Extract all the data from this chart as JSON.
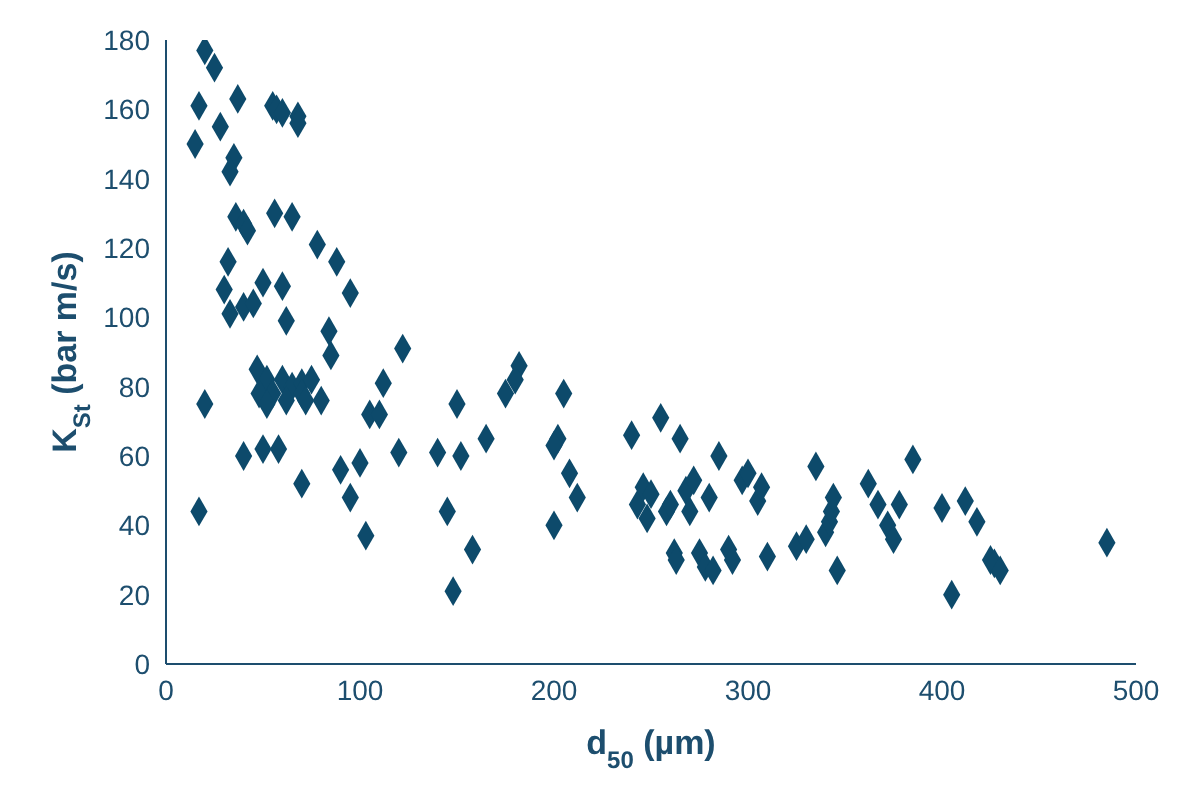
{
  "chart_data": {
    "type": "scatter",
    "xlabel": "d$_{50}$ (µm)",
    "ylabel": "K$_{St}$ (bar m/s)",
    "xlim": [
      0,
      500
    ],
    "xticks": [
      0,
      100,
      200,
      300,
      400,
      500
    ],
    "ylim": [
      0,
      180
    ],
    "yticks": [
      0,
      20,
      40,
      60,
      80,
      100,
      120,
      140,
      160,
      180
    ],
    "grid": false,
    "marker": "diamond",
    "series": [
      {
        "color": "#0d4a6b",
        "x": [
          20,
          25,
          17,
          28,
          15,
          37,
          35,
          33,
          55,
          57,
          60,
          68,
          68,
          36,
          40,
          42,
          56,
          65,
          32,
          30,
          50,
          33,
          40,
          45,
          60,
          62,
          78,
          88,
          95,
          20,
          17,
          47,
          52,
          55,
          60,
          65,
          70,
          75,
          70,
          72,
          48,
          52,
          62,
          80,
          85,
          84,
          40,
          50,
          58,
          70,
          90,
          100,
          105,
          110,
          112,
          95,
          103,
          122,
          120,
          140,
          145,
          148,
          150,
          152,
          158,
          165,
          175,
          182,
          180,
          200,
          202,
          200,
          205,
          208,
          212,
          240,
          243,
          246,
          248,
          250,
          255,
          258,
          260,
          262,
          263,
          265,
          268,
          270,
          272,
          275,
          278,
          282,
          280,
          285,
          290,
          292,
          297,
          300,
          305,
          307,
          310,
          325,
          330,
          335,
          340,
          342,
          343,
          344,
          346,
          362,
          367,
          372,
          375,
          378,
          385,
          400,
          405,
          412,
          418,
          425,
          427,
          430,
          485
        ],
        "values": [
          177,
          172,
          161,
          155,
          150,
          163,
          146,
          142,
          161,
          160,
          159,
          158,
          156,
          129,
          127,
          125,
          130,
          129,
          116,
          108,
          110,
          101,
          103,
          104,
          109,
          99,
          121,
          116,
          107,
          75,
          44,
          85,
          82,
          78,
          82,
          80,
          81,
          82,
          78,
          76,
          78,
          75,
          76,
          76,
          89,
          96,
          60,
          62,
          62,
          52,
          56,
          58,
          72,
          72,
          81,
          48,
          37,
          91,
          61,
          61,
          44,
          21,
          75,
          60,
          33,
          65,
          78,
          86,
          82,
          40,
          65,
          63,
          78,
          55,
          48,
          66,
          46,
          51,
          42,
          49,
          71,
          44,
          46,
          32,
          30,
          65,
          50,
          44,
          53,
          32,
          28,
          27,
          48,
          60,
          33,
          30,
          53,
          55,
          47,
          51,
          31,
          34,
          36,
          57,
          38,
          41,
          44,
          48,
          27,
          52,
          46,
          40,
          36,
          46,
          59,
          45,
          20,
          47,
          41,
          30,
          29,
          27,
          35
        ]
      }
    ]
  }
}
